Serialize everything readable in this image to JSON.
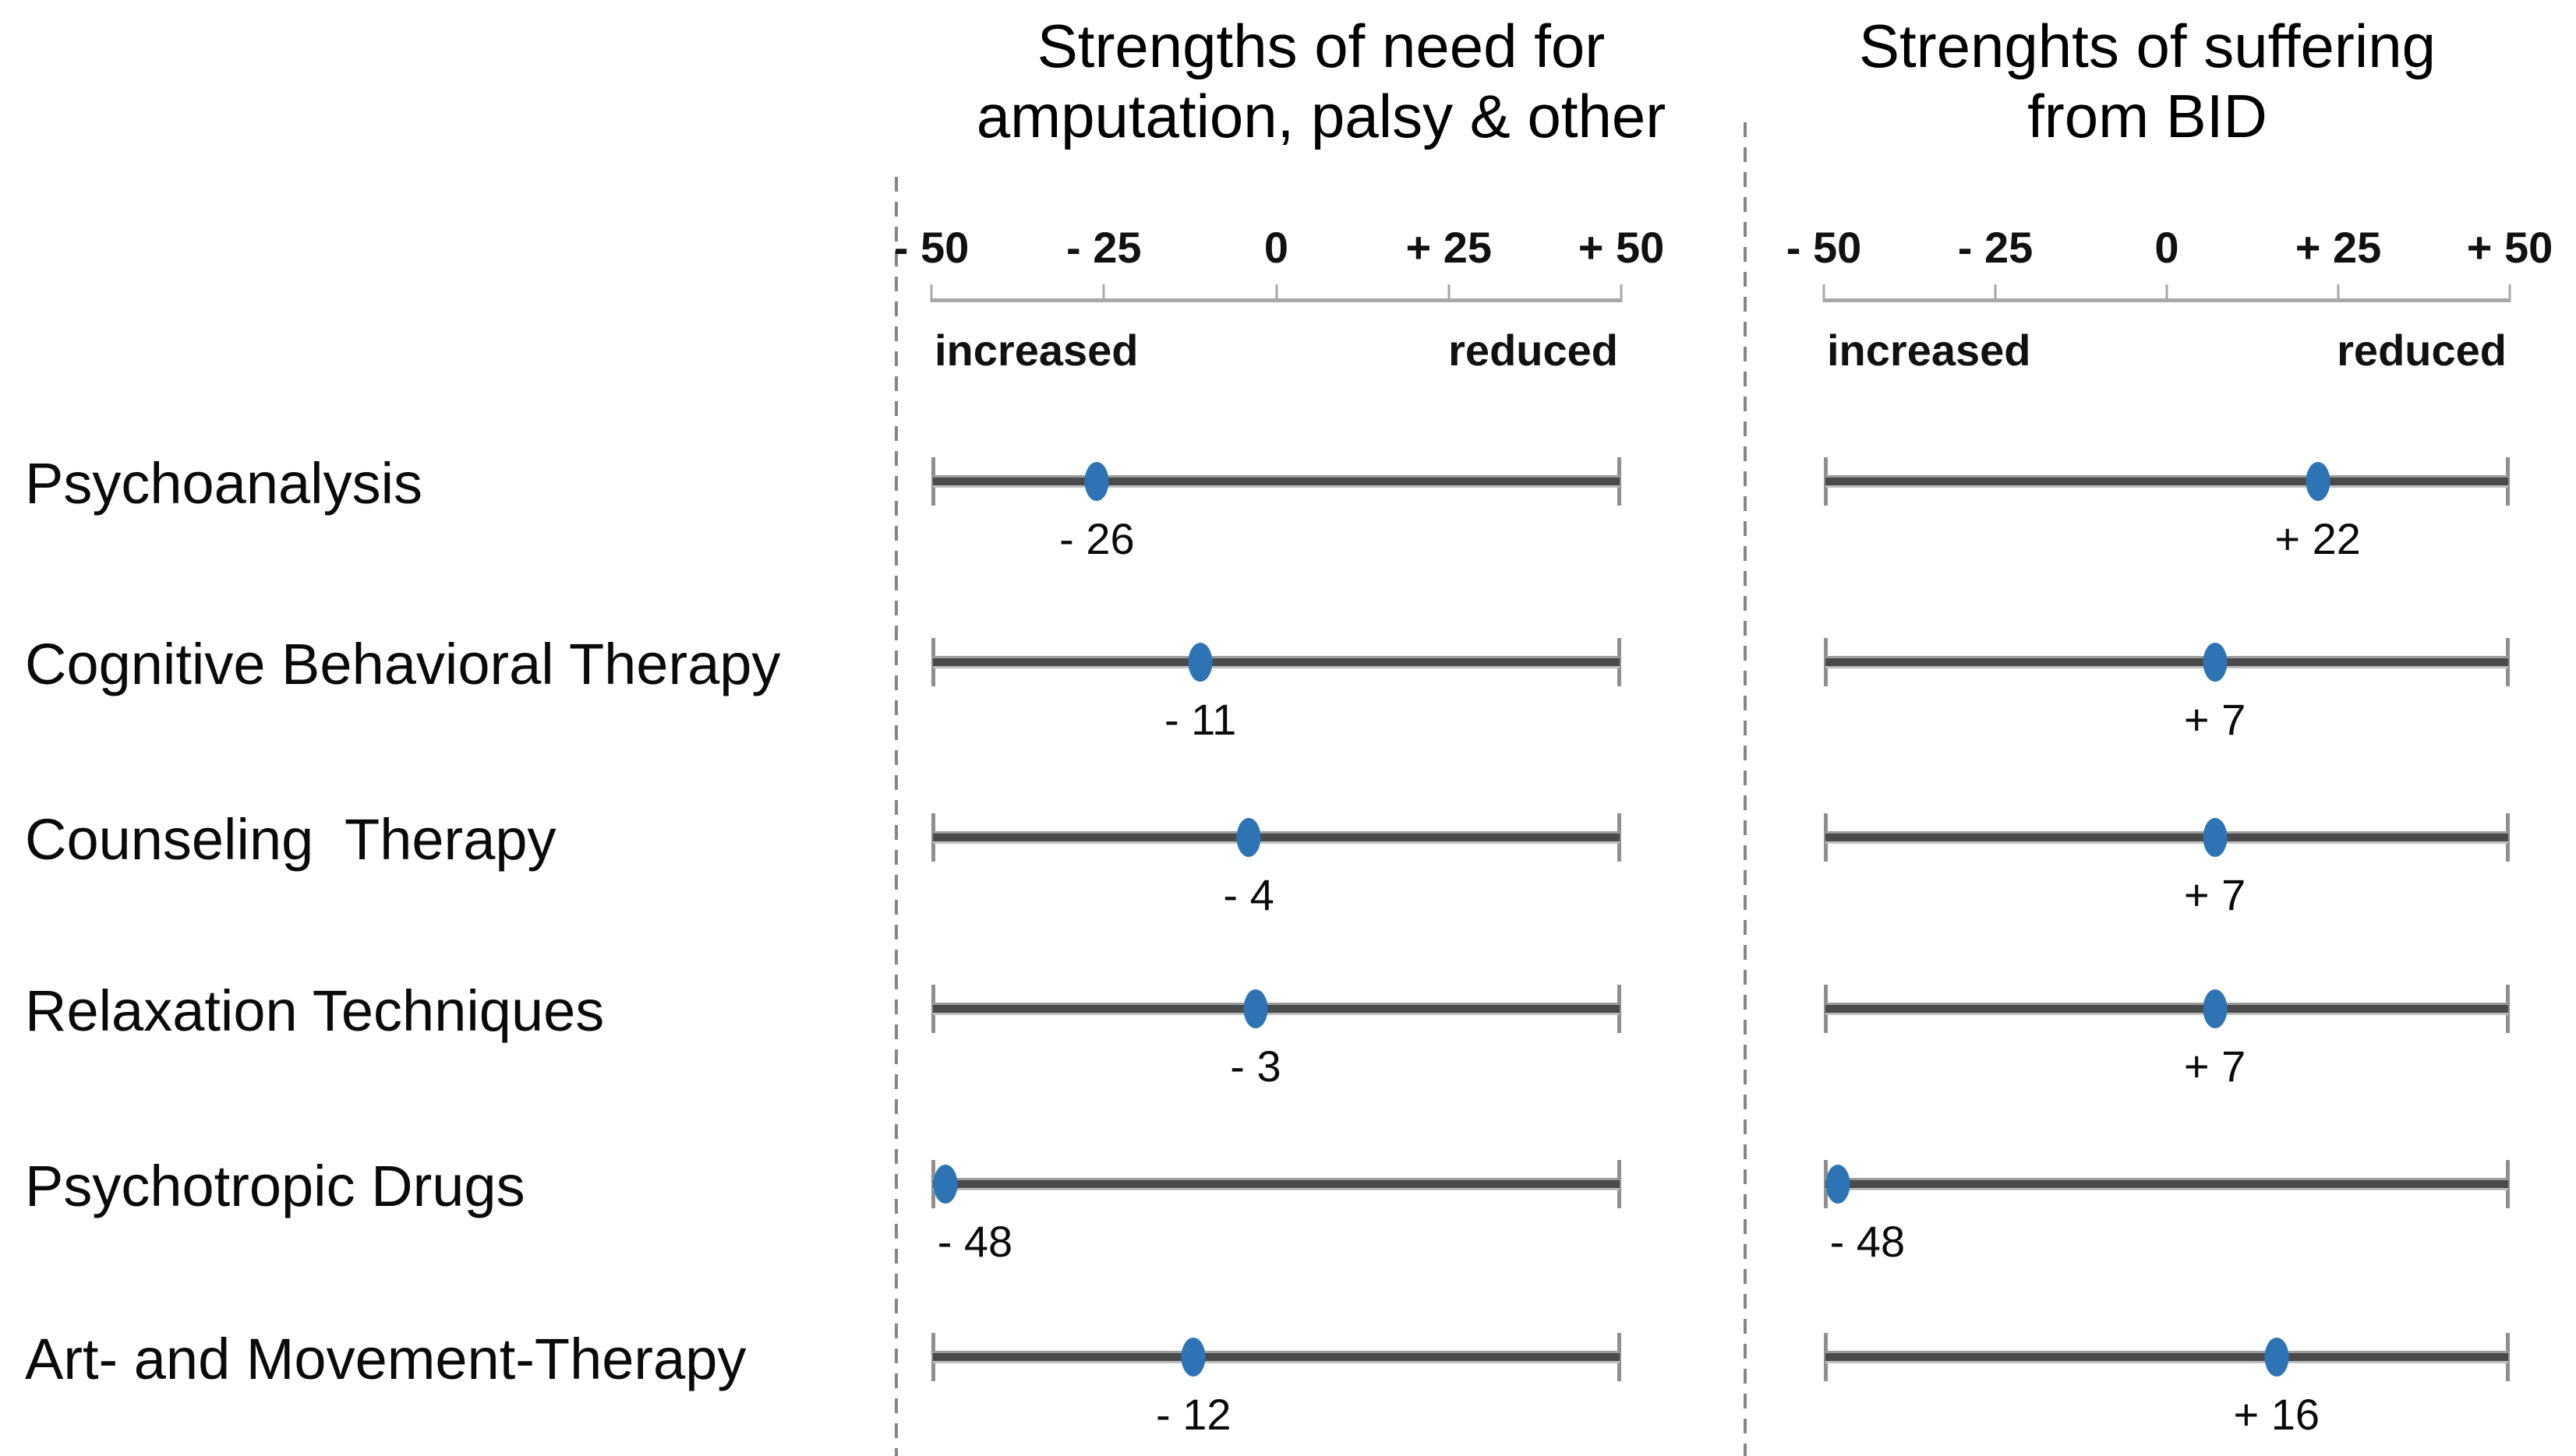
{
  "chart_data": {
    "type": "scatter",
    "categories": [
      "Psychoanalysis",
      "Cognitive Behavioral Therapy",
      "Counseling  Therapy",
      "Relaxation Techniques",
      "Psychotropic Drugs",
      "Art- and Movement-Therapy"
    ],
    "axis": {
      "range": [
        -50,
        50
      ],
      "ticks": [
        -50,
        -25,
        0,
        25,
        50
      ],
      "tick_labels": [
        "- 50",
        "- 25",
        "0",
        "+ 25",
        "+ 50"
      ],
      "left_anchor": "increased",
      "right_anchor": "reduced",
      "grid": false
    },
    "panels": [
      {
        "title_line1": "Strengths of need for",
        "title_line2": "amputation, palsy & other",
        "values": [
          -26,
          -11,
          -4,
          -3,
          -48,
          -12
        ],
        "value_labels": [
          "- 26",
          "- 11",
          "- 4",
          "- 3",
          "- 48",
          "- 12"
        ]
      },
      {
        "title_line1": "Strenghts of suffering",
        "title_line2": "from BID",
        "values": [
          22,
          7,
          7,
          7,
          -48,
          16
        ],
        "value_labels": [
          "+ 22",
          "+ 7",
          "+ 7",
          "+ 7",
          "- 48",
          "+ 16"
        ]
      }
    ],
    "marker_color": "#2e74b5",
    "line_color": "#4a4a4a",
    "legend": null
  }
}
